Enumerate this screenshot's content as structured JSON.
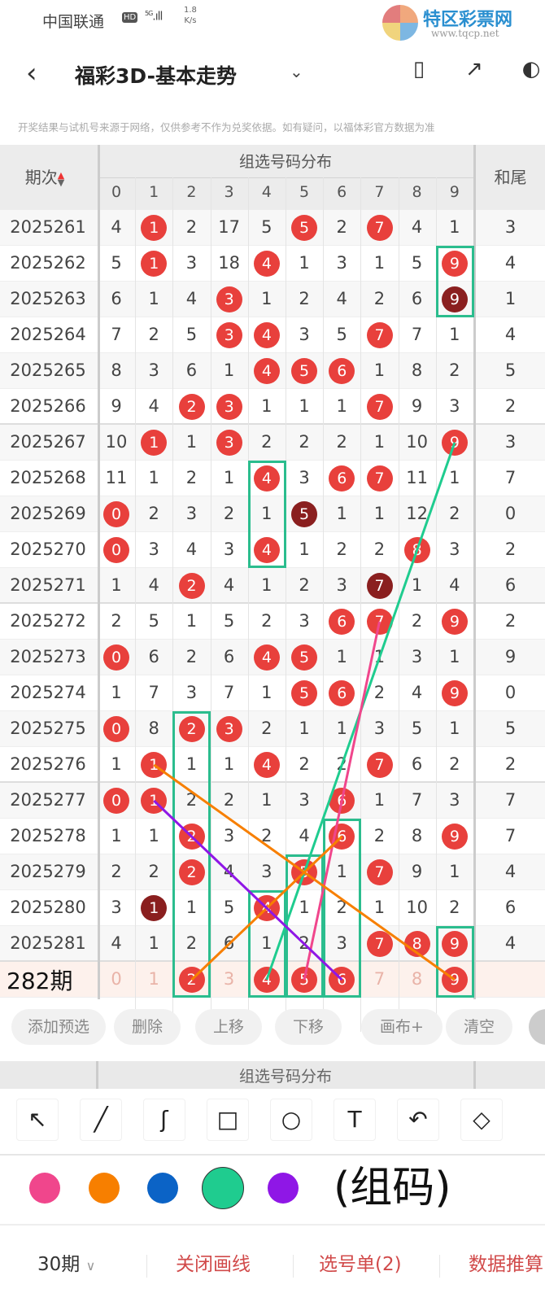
{
  "status_bar": {
    "carrier": "中国联通",
    "hd": "HD",
    "signal": "5G",
    "speed_value": "1.8",
    "speed_unit": "K/s"
  },
  "watermark": {
    "name": "特区彩票网",
    "url": "www.tqcp.net"
  },
  "header": {
    "back_icon": "chevron-left-icon",
    "title": "福彩3D-基本走势",
    "dropdown_icon": "chevron-down-icon",
    "icons": [
      "device-icon",
      "share-icon",
      "more-icon"
    ]
  },
  "notice": "开奖结果与试机号来源于网络，仅供参考不作为兑奖依据。如有疑问，以福体彩官方数据为准",
  "table": {
    "period_header": "期次",
    "group_header": "组选号码分布",
    "sum_tail_header": "和尾",
    "digits": [
      "0",
      "1",
      "2",
      "3",
      "4",
      "5",
      "6",
      "7",
      "8",
      "9"
    ],
    "rows": [
      {
        "period": "2025261",
        "cells": [
          "4",
          "1",
          "2",
          "17",
          "5",
          "5",
          "2",
          "7",
          "4",
          "1"
        ],
        "hits": [
          1,
          5,
          7
        ],
        "repeat": [],
        "tail": "3"
      },
      {
        "period": "2025262",
        "cells": [
          "5",
          "1",
          "3",
          "18",
          "4",
          "1",
          "3",
          "1",
          "5",
          "9"
        ],
        "hits": [
          1,
          4,
          9
        ],
        "repeat": [],
        "tail": "4"
      },
      {
        "period": "2025263",
        "cells": [
          "6",
          "1",
          "4",
          "3",
          "1",
          "2",
          "4",
          "2",
          "6",
          "9"
        ],
        "hits": [
          3
        ],
        "repeat": [
          9
        ],
        "tail": "1"
      },
      {
        "period": "2025264",
        "cells": [
          "7",
          "2",
          "5",
          "3",
          "4",
          "3",
          "5",
          "7",
          "7",
          "1"
        ],
        "hits": [
          3,
          4,
          7
        ],
        "repeat": [],
        "tail": "4"
      },
      {
        "period": "2025265",
        "cells": [
          "8",
          "3",
          "6",
          "1",
          "4",
          "5",
          "6",
          "1",
          "8",
          "2"
        ],
        "hits": [
          4,
          5,
          6
        ],
        "repeat": [],
        "tail": "5"
      },
      {
        "period": "2025266",
        "cells": [
          "9",
          "4",
          "2",
          "3",
          "1",
          "1",
          "1",
          "7",
          "9",
          "3"
        ],
        "hits": [
          2,
          3,
          7
        ],
        "repeat": [],
        "tail": "2"
      },
      {
        "period": "2025267",
        "cells": [
          "10",
          "1",
          "1",
          "3",
          "2",
          "2",
          "2",
          "1",
          "10",
          "9"
        ],
        "hits": [
          1,
          3,
          9
        ],
        "repeat": [],
        "tail": "3"
      },
      {
        "period": "2025268",
        "cells": [
          "11",
          "1",
          "2",
          "1",
          "4",
          "3",
          "6",
          "7",
          "11",
          "1"
        ],
        "hits": [
          4,
          6,
          7
        ],
        "repeat": [],
        "tail": "7"
      },
      {
        "period": "2025269",
        "cells": [
          "0",
          "2",
          "3",
          "2",
          "1",
          "5",
          "1",
          "1",
          "12",
          "2"
        ],
        "hits": [
          0
        ],
        "repeat": [
          5
        ],
        "tail": "0"
      },
      {
        "period": "2025270",
        "cells": [
          "0",
          "3",
          "4",
          "3",
          "4",
          "1",
          "2",
          "2",
          "8",
          "3"
        ],
        "hits": [
          0,
          4,
          8
        ],
        "repeat": [],
        "tail": "2"
      },
      {
        "period": "2025271",
        "cells": [
          "1",
          "4",
          "2",
          "4",
          "1",
          "2",
          "3",
          "7",
          "1",
          "4"
        ],
        "hits": [
          2
        ],
        "repeat": [
          7
        ],
        "tail": "6"
      },
      {
        "period": "2025272",
        "cells": [
          "2",
          "5",
          "1",
          "5",
          "2",
          "3",
          "6",
          "7",
          "2",
          "9"
        ],
        "hits": [
          6,
          7,
          9
        ],
        "repeat": [],
        "tail": "2"
      },
      {
        "period": "2025273",
        "cells": [
          "0",
          "6",
          "2",
          "6",
          "4",
          "5",
          "1",
          "1",
          "3",
          "1"
        ],
        "hits": [
          0,
          4,
          5
        ],
        "repeat": [],
        "tail": "9"
      },
      {
        "period": "2025274",
        "cells": [
          "1",
          "7",
          "3",
          "7",
          "1",
          "5",
          "6",
          "2",
          "4",
          "9"
        ],
        "hits": [
          5,
          6,
          9
        ],
        "repeat": [],
        "tail": "0"
      },
      {
        "period": "2025275",
        "cells": [
          "0",
          "8",
          "2",
          "3",
          "2",
          "1",
          "1",
          "3",
          "5",
          "1"
        ],
        "hits": [
          0,
          2,
          3
        ],
        "repeat": [],
        "tail": "5"
      },
      {
        "period": "2025276",
        "cells": [
          "1",
          "1",
          "1",
          "1",
          "4",
          "2",
          "2",
          "7",
          "6",
          "2"
        ],
        "hits": [
          1,
          4,
          7
        ],
        "repeat": [],
        "tail": "2"
      },
      {
        "period": "2025277",
        "cells": [
          "0",
          "1",
          "2",
          "2",
          "1",
          "3",
          "6",
          "1",
          "7",
          "3"
        ],
        "hits": [
          0,
          1,
          6
        ],
        "repeat": [],
        "tail": "7"
      },
      {
        "period": "2025278",
        "cells": [
          "1",
          "1",
          "2",
          "3",
          "2",
          "4",
          "6",
          "2",
          "8",
          "9"
        ],
        "hits": [
          2,
          6,
          9
        ],
        "repeat": [],
        "tail": "7"
      },
      {
        "period": "2025279",
        "cells": [
          "2",
          "2",
          "2",
          "4",
          "3",
          "5",
          "1",
          "7",
          "9",
          "1"
        ],
        "hits": [
          2,
          5,
          7
        ],
        "repeat": [],
        "tail": "4"
      },
      {
        "period": "2025280",
        "cells": [
          "3",
          "1",
          "1",
          "5",
          "4",
          "1",
          "2",
          "1",
          "10",
          "2"
        ],
        "hits": [
          4
        ],
        "repeat": [
          1
        ],
        "tail": "6"
      },
      {
        "period": "2025281",
        "cells": [
          "4",
          "1",
          "2",
          "6",
          "1",
          "2",
          "3",
          "7",
          "8",
          "9"
        ],
        "hits": [
          7,
          8,
          9
        ],
        "repeat": [],
        "tail": "4"
      }
    ],
    "preview_row": {
      "period": "282期",
      "cells": [
        "0",
        "1",
        "2",
        "3",
        "4",
        "5",
        "6",
        "7",
        "8",
        "9"
      ],
      "selected": [
        2,
        4,
        5,
        6,
        9
      ]
    }
  },
  "actions": [
    "添加预选",
    "删除",
    "上移",
    "下移",
    "画布+",
    "清空"
  ],
  "overlay_text": "(组码)",
  "header2_text": "组选号码分布",
  "tools": [
    {
      "icon": "arrow-pointer-icon",
      "glyph": "↖"
    },
    {
      "icon": "line-icon",
      "glyph": "╱"
    },
    {
      "icon": "freehand-icon",
      "glyph": "ʃ"
    },
    {
      "icon": "rectangle-icon",
      "glyph": "□"
    },
    {
      "icon": "circle-icon",
      "glyph": "○"
    },
    {
      "icon": "text-icon",
      "glyph": "T"
    },
    {
      "icon": "undo-icon",
      "glyph": "↶"
    },
    {
      "icon": "eraser-icon",
      "glyph": "◇"
    }
  ],
  "colors": [
    "#f0468c",
    "#f77f00",
    "#0b63c6",
    "#1fcc8f",
    "#8f17e6"
  ],
  "selected_color": "#1fcc8f",
  "colors_meta": {
    "hit": "#e8403c",
    "repeat": "#8a1f1f",
    "box": "#2bbd8e"
  },
  "bottom": {
    "periods": "30期",
    "close_drawing": "关闭画线",
    "pick_list": "选号单(2)",
    "data_forecast": "数据推算"
  }
}
